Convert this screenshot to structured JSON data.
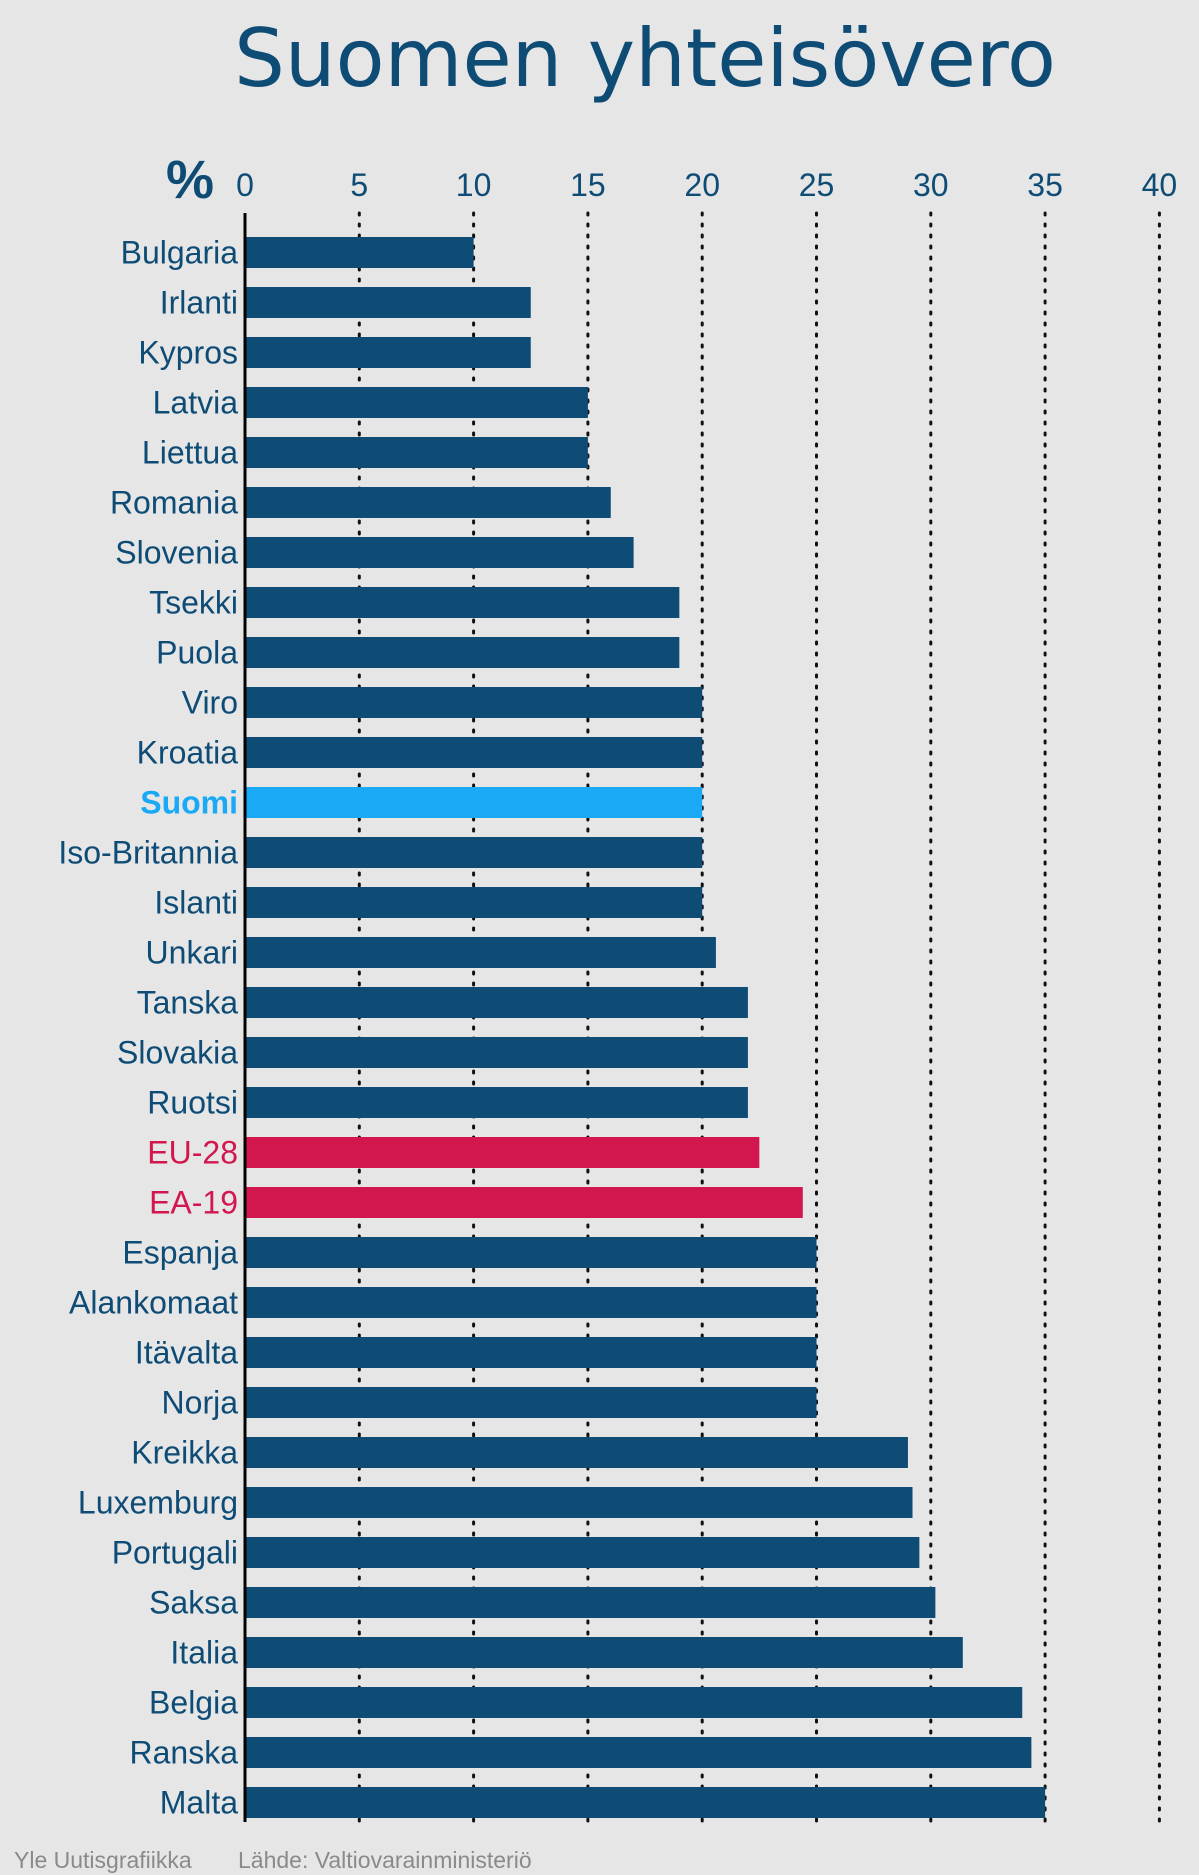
{
  "colors": {
    "background": "#e6e6e6",
    "bar": "#0e4c76",
    "highlight": "#19a9f5",
    "reference": "#d2174f",
    "axis": "#000000",
    "text": "#0e4c76",
    "footer": "#8a8a8a"
  },
  "chart_data": {
    "type": "bar",
    "orientation": "horizontal",
    "title": "Suomen yhteisövero",
    "unit_label": "%",
    "xlim": [
      0,
      40
    ],
    "xticks": [
      "0",
      "5",
      "10",
      "15",
      "20",
      "25",
      "30",
      "35",
      "40"
    ],
    "grid": "vertical dotted",
    "categories": [
      {
        "label": "Bulgaria",
        "value": 10,
        "kind": "normal"
      },
      {
        "label": "Irlanti",
        "value": 12.5,
        "kind": "normal"
      },
      {
        "label": "Kypros",
        "value": 12.5,
        "kind": "normal"
      },
      {
        "label": "Latvia",
        "value": 15,
        "kind": "normal"
      },
      {
        "label": "Liettua",
        "value": 15,
        "kind": "normal"
      },
      {
        "label": "Romania",
        "value": 16,
        "kind": "normal"
      },
      {
        "label": "Slovenia",
        "value": 17,
        "kind": "normal"
      },
      {
        "label": "Tsekki",
        "value": 19,
        "kind": "normal"
      },
      {
        "label": "Puola",
        "value": 19,
        "kind": "normal"
      },
      {
        "label": "Viro",
        "value": 20,
        "kind": "normal"
      },
      {
        "label": "Kroatia",
        "value": 20,
        "kind": "normal"
      },
      {
        "label": "Suomi",
        "value": 20,
        "kind": "highlight"
      },
      {
        "label": "Iso-Britannia",
        "value": 20,
        "kind": "normal"
      },
      {
        "label": "Islanti",
        "value": 20,
        "kind": "normal"
      },
      {
        "label": "Unkari",
        "value": 20.6,
        "kind": "normal"
      },
      {
        "label": "Tanska",
        "value": 22,
        "kind": "normal"
      },
      {
        "label": "Slovakia",
        "value": 22,
        "kind": "normal"
      },
      {
        "label": "Ruotsi",
        "value": 22,
        "kind": "normal"
      },
      {
        "label": "EU-28",
        "value": 22.5,
        "kind": "reference"
      },
      {
        "label": "EA-19",
        "value": 24.4,
        "kind": "reference"
      },
      {
        "label": "Espanja",
        "value": 25,
        "kind": "normal"
      },
      {
        "label": "Alankomaat",
        "value": 25,
        "kind": "normal"
      },
      {
        "label": "Itävalta",
        "value": 25,
        "kind": "normal"
      },
      {
        "label": "Norja",
        "value": 25,
        "kind": "normal"
      },
      {
        "label": "Kreikka",
        "value": 29,
        "kind": "normal"
      },
      {
        "label": "Luxemburg",
        "value": 29.2,
        "kind": "normal"
      },
      {
        "label": "Portugali",
        "value": 29.5,
        "kind": "normal"
      },
      {
        "label": "Saksa",
        "value": 30.2,
        "kind": "normal"
      },
      {
        "label": "Italia",
        "value": 31.4,
        "kind": "normal"
      },
      {
        "label": "Belgia",
        "value": 34,
        "kind": "normal"
      },
      {
        "label": "Ranska",
        "value": 34.4,
        "kind": "normal"
      },
      {
        "label": "Malta",
        "value": 35,
        "kind": "normal"
      }
    ]
  },
  "footer": {
    "credit": "Yle Uutisgrafiikka",
    "source": "Lähde: Valtiovarainministeriö"
  }
}
